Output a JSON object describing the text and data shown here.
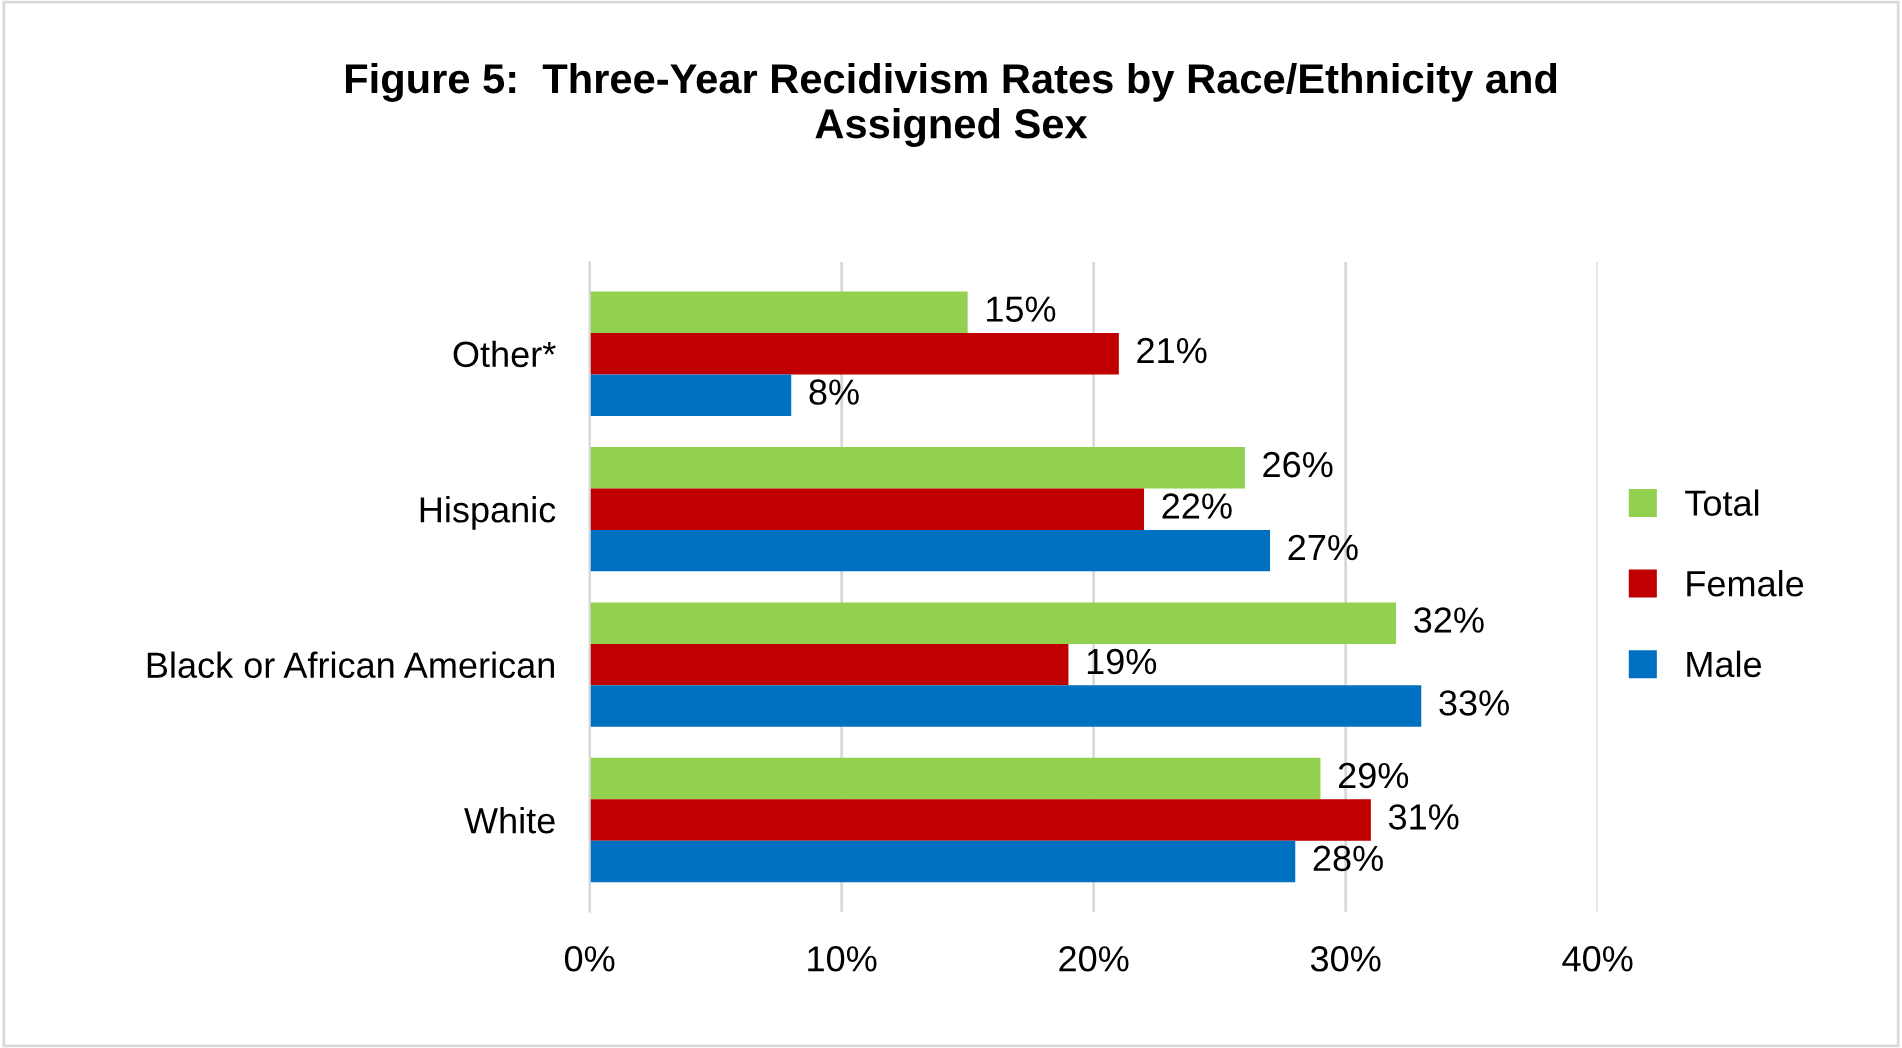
{
  "chart_data": {
    "type": "bar",
    "orientation": "horizontal",
    "title": "Figure 5:  Three-Year Recidivism Rates by Race/Ethnicity and\nAssigned Sex",
    "categories": [
      "Other*",
      "Hispanic",
      "Black or African American",
      "White"
    ],
    "series": [
      {
        "name": "Total",
        "color": "#92d050",
        "values": [
          15,
          26,
          32,
          29
        ],
        "value_labels": [
          "15%",
          "26%",
          "32%",
          "29%"
        ]
      },
      {
        "name": "Female",
        "color": "#c00000",
        "values": [
          21,
          22,
          19,
          31
        ],
        "value_labels": [
          "21%",
          "22%",
          "19%",
          "31%"
        ]
      },
      {
        "name": "Male",
        "color": "#0070c0",
        "values": [
          8,
          27,
          33,
          28
        ],
        "value_labels": [
          "8%",
          "27%",
          "33%",
          "28%"
        ]
      }
    ],
    "xlim": [
      0,
      40
    ],
    "xticks": [
      {
        "value": 0,
        "label": "0%"
      },
      {
        "value": 10,
        "label": "10%"
      },
      {
        "value": 20,
        "label": "20%"
      },
      {
        "value": 30,
        "label": "30%"
      },
      {
        "value": 40,
        "label": "40%"
      }
    ],
    "grid": "x",
    "legend": "right"
  }
}
